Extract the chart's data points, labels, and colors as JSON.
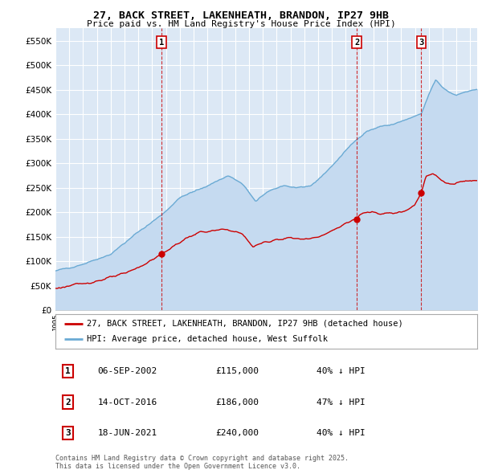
{
  "title1": "27, BACK STREET, LAKENHEATH, BRANDON, IP27 9HB",
  "title2": "Price paid vs. HM Land Registry's House Price Index (HPI)",
  "ylim": [
    0,
    575000
  ],
  "yticks": [
    0,
    50000,
    100000,
    150000,
    200000,
    250000,
    300000,
    350000,
    400000,
    450000,
    500000,
    550000
  ],
  "background_color": "#ffffff",
  "plot_bg_color": "#dce8f5",
  "grid_color": "#ffffff",
  "hpi_color": "#6aaad4",
  "hpi_fill_color": "#c5daf0",
  "price_color": "#cc0000",
  "sale_marker_color": "#cc0000",
  "dashed_line_color": "#cc0000",
  "legend_label_red": "27, BACK STREET, LAKENHEATH, BRANDON, IP27 9HB (detached house)",
  "legend_label_blue": "HPI: Average price, detached house, West Suffolk",
  "transactions": [
    {
      "date": 2002.68,
      "price": 115000,
      "label": "1"
    },
    {
      "date": 2016.79,
      "price": 186000,
      "label": "2"
    },
    {
      "date": 2021.46,
      "price": 240000,
      "label": "3"
    }
  ],
  "table_rows": [
    {
      "num": "1",
      "date": "06-SEP-2002",
      "price": "£115,000",
      "pct": "40% ↓ HPI"
    },
    {
      "num": "2",
      "date": "14-OCT-2016",
      "price": "£186,000",
      "pct": "47% ↓ HPI"
    },
    {
      "num": "3",
      "date": "18-JUN-2021",
      "price": "£240,000",
      "pct": "40% ↓ HPI"
    }
  ],
  "footnote": "Contains HM Land Registry data © Crown copyright and database right 2025.\nThis data is licensed under the Open Government Licence v3.0.",
  "xmin": 1995.0,
  "xmax": 2025.5
}
